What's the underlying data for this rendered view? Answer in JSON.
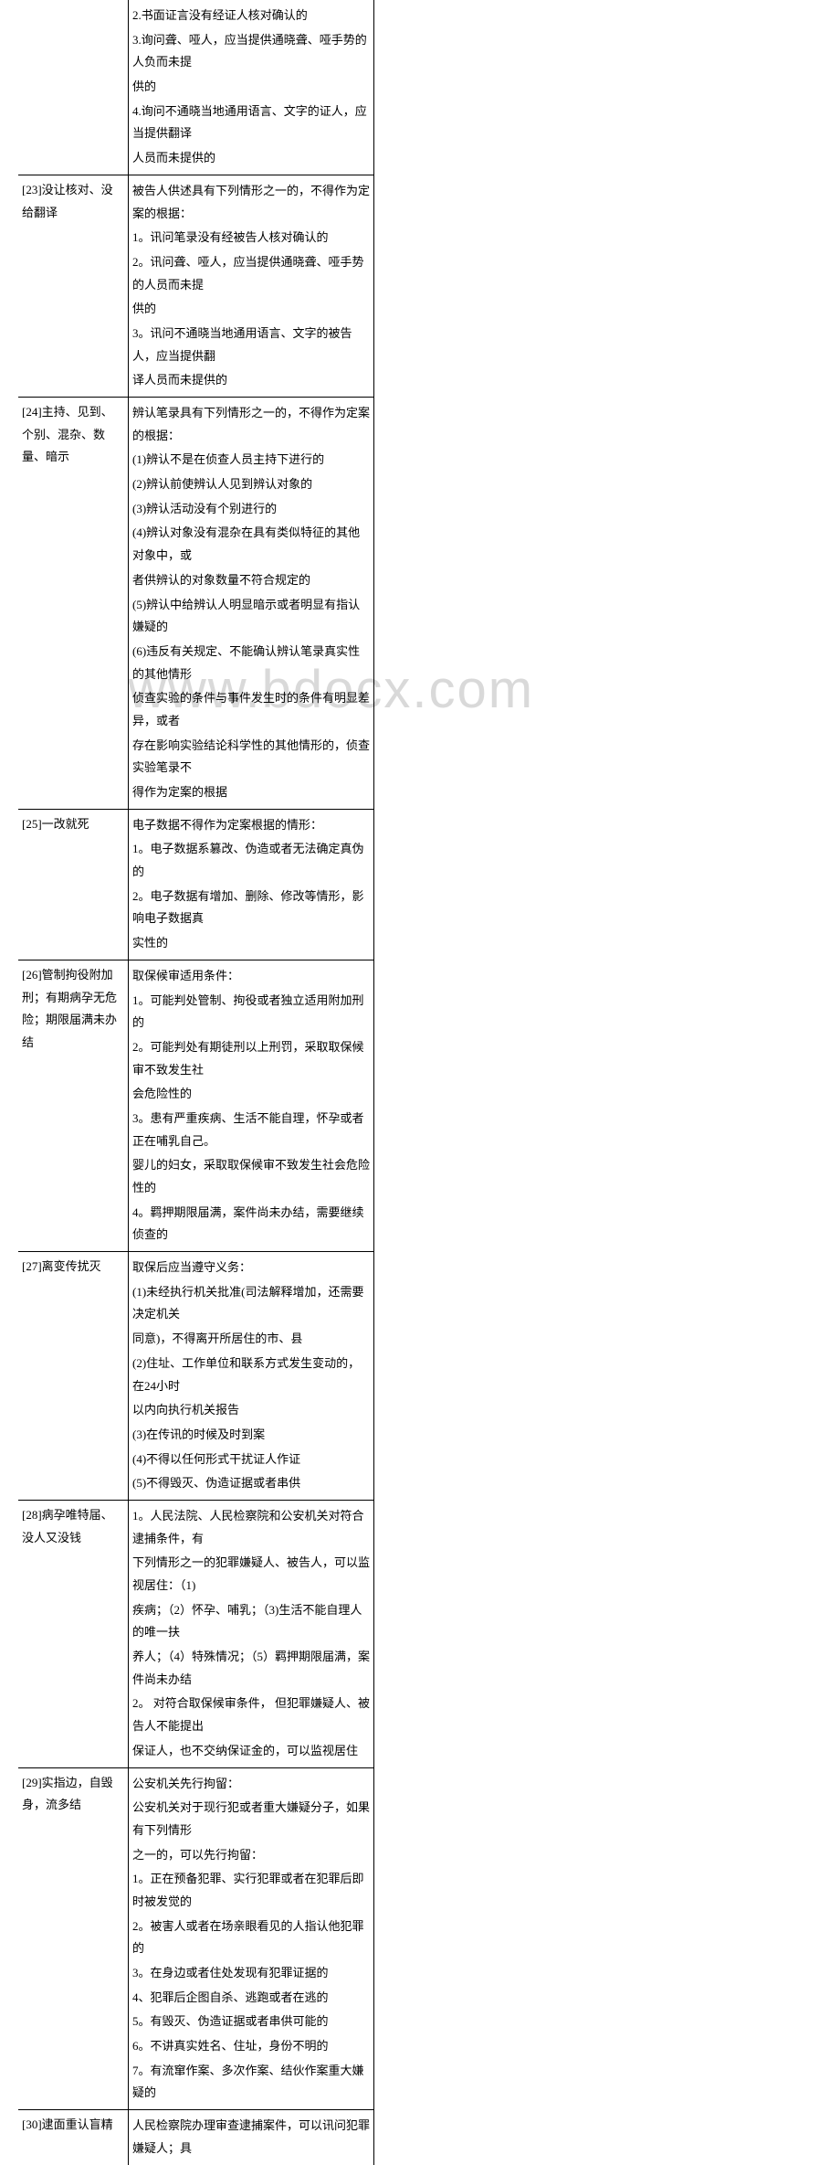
{
  "watermark": "www.bdocx.com",
  "rows": [
    {
      "left": "",
      "right": [
        "2.书面证言没有经证人核对确认的",
        "3.询问聋、哑人，应当提供通晓聋、哑手势的人负而未提",
        "供的",
        "4.询问不通晓当地通用语言、文字的证人，应当提供翻译",
        "人员而未提供的"
      ]
    },
    {
      "left": "[23]没让核对、没给翻译",
      "right": [
        "被告人供述具有下列情形之一的，不得作为定案的根据：",
        "1。讯问笔录没有经被告人核对确认的",
        "2。讯问聋、哑人，应当提供通晓聋、哑手势的人员而未提",
        "供的",
        "3。讯问不通晓当地通用语言、文字的被告人，应当提供翻",
        "译人员而未提供的"
      ]
    },
    {
      "left": "[24]主持、见到、个别、混杂、数量、暗示",
      "right": [
        "辨认笔录具有下列情形之一的，不得作为定案的根据：",
        "(1)辨认不是在侦查人员主持下进行的",
        "(2)辨认前使辨认人见到辨认对象的",
        "(3)辨认活动没有个别进行的",
        "(4)辨认对象没有混杂在具有类似特征的其他对象中，或",
        "者供辨认的对象数量不符合规定的",
        "(5)辨认中给辨认人明显暗示或者明显有指认嫌疑的",
        "(6)违反有关规定、不能确认辨认笔录真实性的其他情形",
        "侦查实验的条件与事件发生时的条件有明显差异，或者",
        "存在影响实验结论科学性的其他情形的，侦查实验笔录不",
        "得作为定案的根据"
      ]
    },
    {
      "left": "[25]一改就死",
      "right": [
        "电子数据不得作为定案根据的情形：",
        "1。电子数据系篡改、伪造或者无法确定真伪的",
        "2。电子数据有增加、删除、修改等情形，影响电子数据真",
        "实性的"
      ]
    },
    {
      "left": "[26]管制拘役附加刑；有期病孕无危险；期限届满未办结",
      "right": [
        "取保候审适用条件：",
        "1。可能判处管制、拘役或者独立适用附加刑的",
        "2。可能判处有期徒刑以上刑罚，采取取保候审不致发生社",
        "会危险性的",
        "3。患有严重疾病、生活不能自理，怀孕或者正在哺乳自己。",
        "婴儿的妇女，采取取保候审不致发生社会危险性的",
        "4。羁押期限届满，案件尚未办结，需要继续侦查的"
      ]
    },
    {
      "left": "[27]离变传扰灭",
      "right": [
        "取保后应当遵守义务：",
        "(1)未经执行机关批准(司法解释增加，还需要决定机关",
        "同意)，不得离开所居住的市、县",
        "(2)住址、工作单位和联系方式发生变动的，在24小时",
        "以内向执行机关报告",
        "(3)在传讯的时候及时到案",
        "(4)不得以任何形式干扰证人作证",
        "(5)不得毁灭、伪造证据或者串供"
      ]
    },
    {
      "left": "[28]病孕唯特届、没人又没钱",
      "right": [
        "1。人民法院、人民检察院和公安机关对符合逮捕条件，有",
        "下列情形之一的犯罪嫌疑人、被告人，可以监视居住：（1)",
        "疾病；（2）怀孕、哺乳；（3)生活不能自理人的唯一扶",
        "养人；（4）特殊情况；（5）羁押期限届满，案件尚未办结",
        "2。 对符合取保候审条件， 但犯罪嫌疑人、被告人不能提出",
        "保证人，也不交纳保证金的，可以监视居住"
      ]
    },
    {
      "left": "[29]实指边，自毁身，流多结",
      "right": [
        "公安机关先行拘留：",
        "公安机关对于现行犯或者重大嫌疑分子，如果有下列情形",
        "之一的，可以先行拘留：",
        "1。正在预备犯罪、实行犯罪或者在犯罪后即时被发觉的",
        "2。被害人或者在场亲眼看见的人指认他犯罪的",
        "3。在身边或者住处发现有犯罪证据的",
        "4、犯罪后企图自杀、逃跑或者在逃的",
        "5。有毁灭、伪造证据或者串供可能的",
        "6。不讲真实姓名、住址，身份不明的",
        "7。有流窜作案、多次作案、结伙作案重大嫌疑的"
      ]
    },
    {
      "left": "[30]逮面重认盲精",
      "right": [
        "人民检察院办理审查逮捕案件，可以讯问犯罪嫌疑人；具"
      ]
    }
  ]
}
